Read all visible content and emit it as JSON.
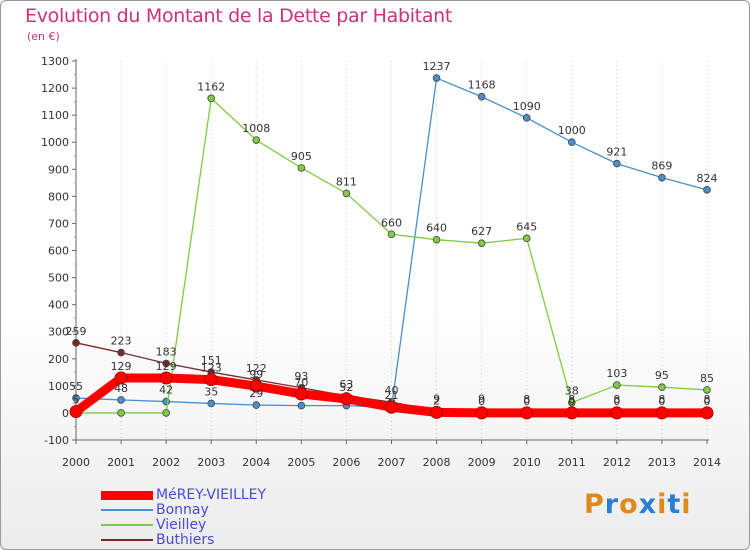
{
  "title": "Evolution du Montant de la Dette par Habitant",
  "unit": "(en €)",
  "logo": {
    "text": "Proxiti",
    "colors": [
      "#e08a1e",
      "#2a7fd0",
      "#e08a1e",
      "#2a7fd0",
      "#e08a1e",
      "#2a7fd0",
      "#e08a1e"
    ]
  },
  "chart_data": {
    "type": "line",
    "title": "Evolution du Montant de la Dette par Habitant",
    "ylabel": "(en €)",
    "xlabel": "",
    "x": [
      "2000",
      "2001",
      "2002",
      "2003",
      "2004",
      "2005",
      "2006",
      "2007",
      "2008",
      "2009",
      "2010",
      "2011",
      "2012",
      "2013",
      "2014"
    ],
    "yticks": [
      "-100",
      "0",
      "100",
      "200",
      "300",
      "400",
      "500",
      "600",
      "700",
      "800",
      "900",
      "1000",
      "1100",
      "1200",
      "1300"
    ],
    "ylim": [
      -100,
      1300
    ],
    "grid": "vertical dotted",
    "legend_position": "bottom-left",
    "series": [
      {
        "name": "MéREY-VIEILLEY",
        "color": "#ff0000",
        "values": [
          5,
          129,
          129,
          123,
          99,
          70,
          52,
          21,
          2,
          0,
          0,
          0,
          0,
          0,
          0
        ],
        "labels": [
          "5",
          "129",
          "129",
          "123",
          "99",
          "70",
          "52",
          "21",
          "2",
          "0",
          "0",
          "0",
          "0",
          "0",
          "0"
        ]
      },
      {
        "name": "Bonnay",
        "color": "#4a8fcc",
        "values": [
          55,
          48,
          42,
          35,
          29,
          27,
          27,
          20,
          1237,
          1168,
          1090,
          1000,
          921,
          869,
          824
        ],
        "labels": [
          "55",
          "48",
          "42",
          "35",
          "29",
          "",
          "",
          "",
          "1237",
          "1168",
          "1090",
          "1000",
          "921",
          "869",
          "824"
        ]
      },
      {
        "name": "Vieilley",
        "color": "#7fcc44",
        "values": [
          0,
          0,
          0,
          1162,
          1008,
          905,
          811,
          660,
          640,
          627,
          645,
          38,
          103,
          95,
          85
        ],
        "labels": [
          "",
          "",
          "",
          "1162",
          "1008",
          "905",
          "811",
          "660",
          "640",
          "627",
          "645",
          "38",
          "103",
          "95",
          "85"
        ]
      },
      {
        "name": "Buthiers",
        "color": "#7a2a2a",
        "values": [
          259,
          223,
          183,
          151,
          122,
          93,
          63,
          40,
          9,
          9,
          8,
          8,
          8,
          8,
          8
        ],
        "labels": [
          "259",
          "223",
          "183",
          "151",
          "122",
          "93",
          "63",
          "40",
          "9",
          "9",
          "8",
          "8",
          "8",
          "8",
          "8"
        ]
      }
    ]
  }
}
